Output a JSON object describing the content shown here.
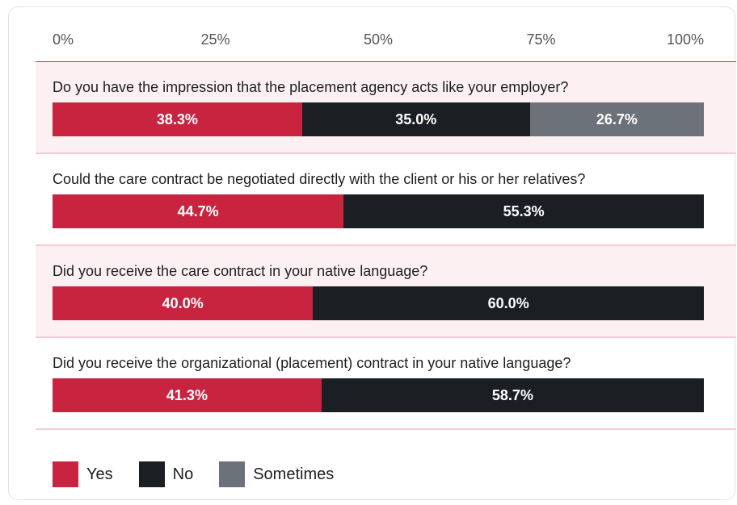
{
  "chart_data": {
    "type": "stacked_bar_horizontal",
    "categories": [
      "Do you have the impression that the placement agency acts like your employer?",
      "Could the care contract be negotiated directly with the client or his or her relatives?",
      "Did you receive the care contract in your native language?",
      "Did you receive the organizational (placement) contract in your native language?"
    ],
    "series": [
      {
        "name": "Yes",
        "color": "#c8243f",
        "values": [
          38.3,
          44.7,
          40.0,
          41.3
        ],
        "value_labels": [
          "38.3%",
          "44.7%",
          "40.0%",
          "41.3%"
        ]
      },
      {
        "name": "No",
        "color": "#1b1f23",
        "values": [
          35.0,
          55.3,
          60.0,
          58.7
        ],
        "value_labels": [
          "35.0%",
          "55.3%",
          "60.0%",
          "58.7%"
        ]
      },
      {
        "name": "Sometimes",
        "color": "#6c727a",
        "values": [
          26.7,
          null,
          null,
          null
        ],
        "value_labels": [
          "26.7%",
          null,
          null,
          null
        ]
      }
    ],
    "xlim": [
      0,
      100
    ],
    "xticks": [
      {
        "value": 0,
        "label": "0%"
      },
      {
        "value": 25,
        "label": "25%"
      },
      {
        "value": 50,
        "label": "50%"
      },
      {
        "value": 75,
        "label": "75%"
      },
      {
        "value": 100,
        "label": "100%"
      }
    ]
  }
}
